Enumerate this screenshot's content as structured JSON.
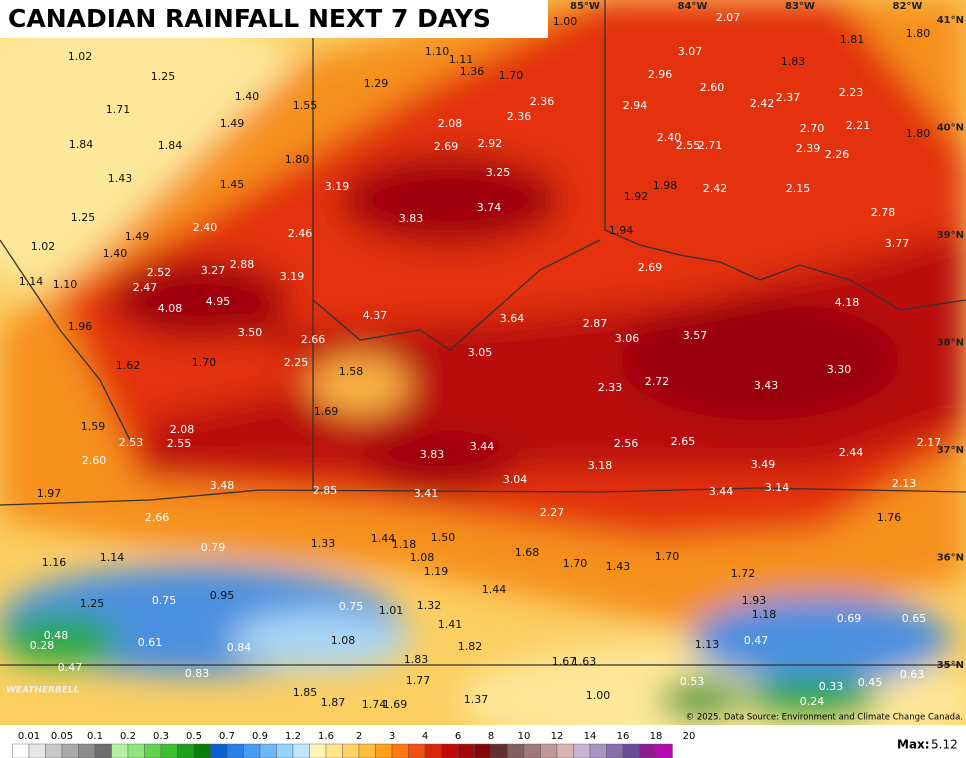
{
  "title": "CANADIAN RAINFALL NEXT 7 DAYS",
  "map": {
    "longitude_labels": [
      "85°W",
      "84°W",
      "83°W",
      "82°W"
    ],
    "latitude_labels": [
      "41°N",
      "40°N",
      "39°N",
      "38°N",
      "37°N",
      "36°N",
      "35°N"
    ],
    "rainfall": {
      "values": [
        1.0,
        2.07,
        1.81,
        1.8,
        1.02,
        1.1,
        1.11,
        1.36,
        1.7,
        3.07,
        1.83,
        1.25,
        1.29,
        2.96,
        2.6,
        2.23,
        1.4,
        1.55,
        2.36,
        2.36,
        2.94,
        2.42,
        2.37,
        1.71,
        1.49,
        2.08,
        2.7,
        2.21,
        1.8,
        1.84,
        1.84,
        2.69,
        2.92,
        2.4,
        2.55,
        2.71,
        2.39,
        2.26,
        1.8,
        3.25,
        1.43,
        1.45,
        3.19,
        1.98,
        2.42,
        2.15,
        1.92,
        3.74,
        3.83,
        2.78,
        1.25,
        2.4,
        2.46,
        1.94,
        1.49,
        3.77,
        1.02,
        1.4,
        2.88,
        3.27,
        2.52,
        2.69,
        3.19,
        1.14,
        1.1,
        2.47,
        4.95,
        4.08,
        4.18,
        4.37,
        3.64,
        2.87,
        1.96,
        3.5,
        2.66,
        3.06,
        3.57,
        3.05,
        1.62,
        1.7,
        2.25,
        1.58,
        3.3,
        2.72,
        3.43,
        2.33,
        1.69,
        1.59,
        2.08,
        2.53,
        2.55,
        3.44,
        2.56,
        2.65,
        2.17,
        3.83,
        2.44,
        2.6,
        3.18,
        3.49,
        3.04,
        2.13,
        3.48,
        3.14,
        1.97,
        2.85,
        3.41,
        3.44,
        2.27,
        2.66,
        1.76,
        1.33,
        1.44,
        1.18,
        1.5,
        0.79,
        1.68,
        1.7,
        1.08,
        1.14,
        1.16,
        1.7,
        1.43,
        1.19,
        1.72,
        1.44,
        0.95,
        1.25,
        0.75,
        1.32,
        0.75,
        1.01,
        1.93,
        1.18,
        0.69,
        0.65,
        1.41,
        0.48,
        0.61,
        1.08,
        0.28,
        0.84,
        1.82,
        1.13,
        0.47,
        1.83,
        1.67,
        1.63,
        0.47,
        0.83,
        1.77,
        0.53,
        0.63,
        0.33,
        0.45,
        1.85,
        1.0,
        1.37,
        1.87,
        1.74,
        1.69,
        0.24
      ],
      "value_labels": [
        "1.00",
        "2.07",
        "1.81",
        "1.80",
        "1.02",
        "1.10",
        "1.11",
        "1.36",
        "1.70",
        "3.07",
        "1.83",
        "1.25",
        "1.29",
        "2.96",
        "2.60",
        "2.23",
        "1.40",
        "1.55",
        "2.36",
        "2.36",
        "2.94",
        "2.42",
        "2.37",
        "1.71",
        "1.49",
        "2.08",
        "2.70",
        "2.21",
        "1.80",
        "1.84",
        "1.84",
        "2.69",
        "2.92",
        "2.40",
        "2.55",
        "2.71",
        "2.39",
        "2.26",
        "1.80",
        "3.25",
        "1.43",
        "1.45",
        "3.19",
        "1.98",
        "2.42",
        "2.15",
        "1.92",
        "3.74",
        "3.83",
        "2.78",
        "1.25",
        "2.40",
        "2.46",
        "1.94",
        "1.49",
        "3.77",
        "1.02",
        "1.40",
        "2.88",
        "3.27",
        "2.52",
        "2.69",
        "3.19",
        "1.14",
        "1.10",
        "2.47",
        "4.95",
        "4.08",
        "4.18",
        "4.37",
        "3.64",
        "2.87",
        "1.96",
        "3.50",
        "2.66",
        "3.06",
        "3.57",
        "3.05",
        "1.62",
        "1.70",
        "2.25",
        "1.58",
        "3.30",
        "2.72",
        "3.43",
        "2.33",
        "1.69",
        "1.59",
        "2.08",
        "2.53",
        "2.55",
        "3.44",
        "2.56",
        "2.65",
        "2.17",
        "3.83",
        "2.44",
        "2.60",
        "3.18",
        "3.49",
        "3.04",
        "2.13",
        "3.48",
        "3.14",
        "1.97",
        "2.85",
        "3.41",
        "3.44",
        "2.27",
        "2.66",
        "1.76",
        "1.33",
        "1.44",
        "1.18",
        "1.50",
        "0.79",
        "1.68",
        "1.70",
        "1.08",
        "1.14",
        "1.16",
        "1.70",
        "1.43",
        "1.19",
        "1.72",
        "1.44",
        "0.95",
        "1.25",
        "0.75",
        "1.32",
        "0.75",
        "1.01",
        "1.93",
        "1.18",
        "0.69",
        "0.65",
        "1.41",
        "0.48",
        "0.61",
        "1.08",
        "0.28",
        "0.84",
        "1.82",
        "1.13",
        "0.47",
        "1.83",
        "1.67",
        "1.63",
        "0.47",
        "0.83",
        "1.77",
        "0.53",
        "0.63",
        "0.33",
        "0.45",
        "1.85",
        "1.00",
        "1.37",
        "1.87",
        "1.74",
        "1.69",
        "0.24"
      ]
    }
  },
  "legend": {
    "levels": [
      0.01,
      0.05,
      0.1,
      0.2,
      0.3,
      0.5,
      0.7,
      0.9,
      1.2,
      1.6,
      2,
      3,
      4,
      6,
      8,
      10,
      12,
      14,
      16,
      18,
      20
    ]
  },
  "max_label": "Max:",
  "max_value": 5.12,
  "credit": "© 2025. Data Source: Environment and Climate Change Canada.",
  "logo": "WEATHERBELL"
}
